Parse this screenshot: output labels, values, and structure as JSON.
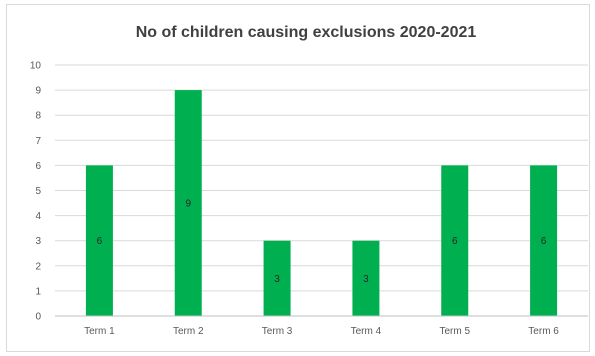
{
  "chart_data": {
    "type": "bar",
    "title": "No of children causing exclusions 2020-2021",
    "xlabel": "",
    "ylabel": "",
    "categories": [
      "Term 1",
      "Term 2",
      "Term 3",
      "Term 4",
      "Term 5",
      "Term 6"
    ],
    "values": [
      6,
      9,
      3,
      3,
      6,
      6
    ],
    "data_labels": [
      "6",
      "9",
      "3",
      "3",
      "6",
      "6"
    ],
    "ylim": [
      0,
      10
    ],
    "yticks": [
      "0",
      "1",
      "2",
      "3",
      "4",
      "5",
      "6",
      "7",
      "8",
      "9",
      "10"
    ],
    "grid": true,
    "legend": "none",
    "colors": {
      "bar": "#00b050",
      "grid": "#d9d9d9",
      "axis": "#bfbfbf"
    }
  }
}
